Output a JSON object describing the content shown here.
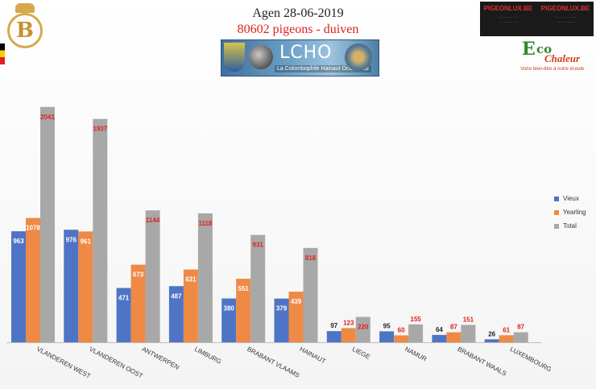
{
  "header": {
    "title": "Agen 28-06-2019",
    "subtitle": "80602 pigeons - duiven",
    "logo_text": "LCHO",
    "logo_subtext": "La Colombophile Hainaut Occidental",
    "left_badge_letter": "B"
  },
  "ads": {
    "brand_left": "PIGEONLUX.BE",
    "brand_right": "PIGEONLUX.BE",
    "eco_e": "E",
    "eco_co": "co",
    "eco_chaleur": "Chaleur",
    "eco_tagline": "Votre bien-être à notre écoute"
  },
  "colors": {
    "vieux": "#4f74c6",
    "yearling": "#ee8a45",
    "total": "#a8a8a8",
    "total_label": "#e02020"
  },
  "chart_data": {
    "type": "bar",
    "categories": [
      "VLANDEREN WEST",
      "VLANDEREN OOST",
      "ANTWERPEN",
      "LIMBURG",
      "BRABANT VLAAMS",
      "HAINAUT",
      "LIEGE",
      "NAMUR",
      "BRABANT WAALS",
      "LUXEMBOURG"
    ],
    "series": [
      {
        "name": "Vieux",
        "values": [
          963,
          976,
          471,
          487,
          380,
          379,
          97,
          95,
          64,
          26
        ]
      },
      {
        "name": "Yearling",
        "values": [
          1078,
          961,
          673,
          631,
          551,
          439,
          123,
          60,
          87,
          61
        ]
      },
      {
        "name": "Total",
        "values": [
          2041,
          1937,
          1144,
          1118,
          931,
          818,
          220,
          155,
          151,
          87
        ]
      }
    ],
    "ylim": [
      0,
      2200
    ],
    "grid": false,
    "legend": "right"
  }
}
